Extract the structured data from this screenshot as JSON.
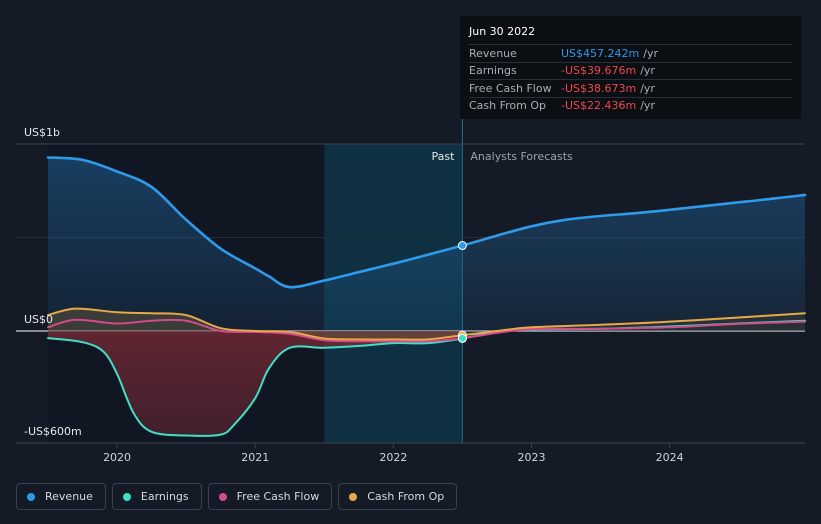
{
  "chart_data": {
    "type": "area",
    "x_unit": "year",
    "y_unit": "US$ millions",
    "ylim": [
      -600,
      1000
    ],
    "xlim": [
      2019.5,
      2024.98
    ],
    "y_tick_labels": [
      {
        "value": 1000,
        "label": "US$1b"
      },
      {
        "value": 0,
        "label": "US$0"
      },
      {
        "value": -600,
        "label": "-US$600m"
      }
    ],
    "x_ticks": [
      "2020",
      "2021",
      "2022",
      "2023",
      "2024"
    ],
    "x_tick_values": [
      2020,
      2021,
      2022,
      2023,
      2024
    ],
    "past_label": "Past",
    "forecast_label": "Analysts Forecasts",
    "past_end": 2022.5,
    "highlight_start": 2021.5,
    "series": [
      {
        "name": "Revenue",
        "color": "#2f9aea",
        "points": [
          [
            2019.5,
            928
          ],
          [
            2019.75,
            915
          ],
          [
            2020.0,
            853
          ],
          [
            2020.25,
            770
          ],
          [
            2020.5,
            595
          ],
          [
            2020.75,
            440
          ],
          [
            2021.0,
            335
          ],
          [
            2021.1,
            292
          ],
          [
            2021.25,
            235
          ],
          [
            2021.5,
            270
          ],
          [
            2021.75,
            315
          ],
          [
            2022.0,
            360
          ],
          [
            2022.25,
            408
          ],
          [
            2022.5,
            457
          ],
          [
            2022.75,
            510
          ],
          [
            2023.0,
            560
          ],
          [
            2023.25,
            595
          ],
          [
            2023.5,
            615
          ],
          [
            2023.75,
            630
          ],
          [
            2024.0,
            648
          ],
          [
            2024.25,
            668
          ],
          [
            2024.5,
            688
          ],
          [
            2024.75,
            708
          ],
          [
            2024.98,
            728
          ]
        ]
      },
      {
        "name": "Earnings",
        "color": "#3fe0c5",
        "points": [
          [
            2019.5,
            -38
          ],
          [
            2019.75,
            -60
          ],
          [
            2019.9,
            -110
          ],
          [
            2020.0,
            -230
          ],
          [
            2020.12,
            -440
          ],
          [
            2020.25,
            -540
          ],
          [
            2020.5,
            -560
          ],
          [
            2020.75,
            -555
          ],
          [
            2020.85,
            -500
          ],
          [
            2021.0,
            -360
          ],
          [
            2021.1,
            -200
          ],
          [
            2021.25,
            -90
          ],
          [
            2021.5,
            -90
          ],
          [
            2021.75,
            -80
          ],
          [
            2022.0,
            -65
          ],
          [
            2022.25,
            -65
          ],
          [
            2022.5,
            -39.7
          ],
          [
            2022.75,
            -5
          ],
          [
            2023.0,
            8
          ],
          [
            2023.5,
            12
          ],
          [
            2024.0,
            24
          ],
          [
            2024.5,
            40
          ],
          [
            2024.98,
            55
          ]
        ]
      },
      {
        "name": "Free Cash Flow",
        "color": "#d24b8c",
        "points": [
          [
            2019.5,
            20
          ],
          [
            2019.7,
            60
          ],
          [
            2020.0,
            40
          ],
          [
            2020.25,
            55
          ],
          [
            2020.5,
            55
          ],
          [
            2020.75,
            0
          ],
          [
            2021.0,
            -5
          ],
          [
            2021.25,
            -15
          ],
          [
            2021.5,
            -50
          ],
          [
            2021.75,
            -55
          ],
          [
            2022.0,
            -55
          ],
          [
            2022.25,
            -55
          ],
          [
            2022.5,
            -38.7
          ],
          [
            2022.75,
            -10
          ],
          [
            2023.0,
            10
          ],
          [
            2023.5,
            12
          ],
          [
            2024.0,
            20
          ],
          [
            2024.5,
            38
          ],
          [
            2024.98,
            50
          ]
        ]
      },
      {
        "name": "Cash From Op",
        "color": "#e8a84a",
        "points": [
          [
            2019.5,
            85
          ],
          [
            2019.7,
            120
          ],
          [
            2020.0,
            100
          ],
          [
            2020.25,
            95
          ],
          [
            2020.5,
            85
          ],
          [
            2020.75,
            15
          ],
          [
            2021.0,
            0
          ],
          [
            2021.25,
            -5
          ],
          [
            2021.5,
            -40
          ],
          [
            2021.75,
            -45
          ],
          [
            2022.0,
            -45
          ],
          [
            2022.25,
            -45
          ],
          [
            2022.5,
            -22.4
          ],
          [
            2022.75,
            0
          ],
          [
            2023.0,
            20
          ],
          [
            2023.5,
            33
          ],
          [
            2024.0,
            50
          ],
          [
            2024.5,
            72
          ],
          [
            2024.98,
            95
          ]
        ]
      }
    ]
  },
  "tooltip": {
    "date": "Jun 30 2022",
    "rows": [
      {
        "label": "Revenue",
        "value": "US$457.242m",
        "unit": "/yr",
        "color": "#2f9aea"
      },
      {
        "label": "Earnings",
        "value": "-US$39.676m",
        "unit": "/yr",
        "color": "#f0474c"
      },
      {
        "label": "Free Cash Flow",
        "value": "-US$38.673m",
        "unit": "/yr",
        "color": "#f0474c"
      },
      {
        "label": "Cash From Op",
        "value": "-US$22.436m",
        "unit": "/yr",
        "color": "#f0474c"
      }
    ]
  },
  "legend": [
    {
      "label": "Revenue",
      "color": "#2f9aea"
    },
    {
      "label": "Earnings",
      "color": "#3fe0c5"
    },
    {
      "label": "Free Cash Flow",
      "color": "#d24b8c"
    },
    {
      "label": "Cash From Op",
      "color": "#e8a84a"
    }
  ]
}
